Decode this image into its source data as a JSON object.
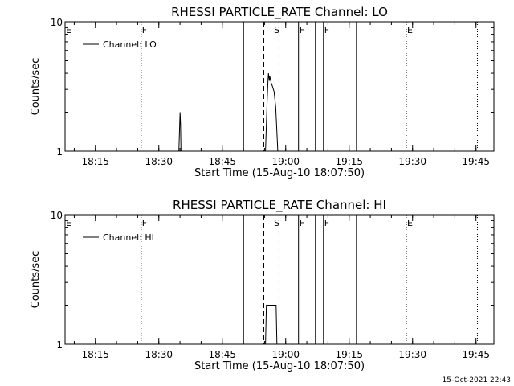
{
  "footer": {
    "timestamp": "15-Oct-2021 22:43"
  },
  "chart_data": [
    {
      "type": "line",
      "title": "RHESSI PARTICLE_RATE Channel: LO",
      "xlabel": "Start Time (15-Aug-10 18:07:50)",
      "ylabel": "Counts/sec",
      "x_unit": "minutes after 18:07:50",
      "xlim": [
        0,
        101.4
      ],
      "ylim": [
        1,
        10
      ],
      "y_scale": "log",
      "y_ticks": [
        1,
        10
      ],
      "x_ticks": [
        {
          "t": 7.17,
          "label": "18:15"
        },
        {
          "t": 22.17,
          "label": "18:30"
        },
        {
          "t": 37.17,
          "label": "18:45"
        },
        {
          "t": 52.17,
          "label": "19:00"
        },
        {
          "t": 67.17,
          "label": "19:15"
        },
        {
          "t": 82.17,
          "label": "19:30"
        },
        {
          "t": 97.17,
          "label": "19:45"
        }
      ],
      "legend": {
        "entries": [
          "Channel: LO"
        ],
        "position": "top-left"
      },
      "grid": false,
      "events": [
        {
          "t": 0.0,
          "label": "E",
          "style": "dotted"
        },
        {
          "t": 18.0,
          "label": "F",
          "style": "dotted"
        },
        {
          "t": 42.2,
          "label": "",
          "style": "solid"
        },
        {
          "t": 47.0,
          "label": "",
          "style": "dashed"
        },
        {
          "t": 49.2,
          "label": "S",
          "style": "none"
        },
        {
          "t": 50.6,
          "label": "",
          "style": "dashed"
        },
        {
          "t": 55.2,
          "label": "F",
          "style": "solid"
        },
        {
          "t": 59.2,
          "label": "",
          "style": "solid"
        },
        {
          "t": 61.1,
          "label": "F",
          "style": "solid"
        },
        {
          "t": 68.9,
          "label": "",
          "style": "solid"
        },
        {
          "t": 80.7,
          "label": "E",
          "style": "dotted"
        },
        {
          "t": 97.5,
          "label": "",
          "style": "dotted"
        }
      ],
      "series": [
        {
          "name": "Channel: LO",
          "segments": [
            {
              "x": [
                26.9,
                27.1,
                27.2,
                27.3,
                27.4
              ],
              "y": [
                1.0,
                1.6,
                2.0,
                1.6,
                1.0
              ]
            },
            {
              "x": [
                47.4,
                47.8,
                48.0,
                48.1,
                48.3,
                48.4,
                48.7,
                49.0,
                49.4,
                49.8,
                50.3
              ],
              "y": [
                1.0,
                2.5,
                3.6,
                4.0,
                3.5,
                3.8,
                3.4,
                3.2,
                2.9,
                2.2,
                1.0
              ]
            }
          ]
        }
      ]
    },
    {
      "type": "line",
      "title": "RHESSI PARTICLE_RATE Channel: HI",
      "xlabel": "Start Time (15-Aug-10 18:07:50)",
      "ylabel": "Counts/sec",
      "x_unit": "minutes after 18:07:50",
      "xlim": [
        0,
        101.4
      ],
      "ylim": [
        1,
        10
      ],
      "y_scale": "log",
      "y_ticks": [
        1,
        10
      ],
      "x_ticks": [
        {
          "t": 7.17,
          "label": "18:15"
        },
        {
          "t": 22.17,
          "label": "18:30"
        },
        {
          "t": 37.17,
          "label": "18:45"
        },
        {
          "t": 52.17,
          "label": "19:00"
        },
        {
          "t": 67.17,
          "label": "19:15"
        },
        {
          "t": 82.17,
          "label": "19:30"
        },
        {
          "t": 97.17,
          "label": "19:45"
        }
      ],
      "legend": {
        "entries": [
          "Channel: HI"
        ],
        "position": "top-left"
      },
      "grid": false,
      "events": [
        {
          "t": 0.0,
          "label": "E",
          "style": "dotted"
        },
        {
          "t": 18.0,
          "label": "F",
          "style": "dotted"
        },
        {
          "t": 42.2,
          "label": "",
          "style": "solid"
        },
        {
          "t": 47.0,
          "label": "",
          "style": "dashed"
        },
        {
          "t": 49.2,
          "label": "S",
          "style": "none"
        },
        {
          "t": 50.6,
          "label": "",
          "style": "dashed"
        },
        {
          "t": 55.2,
          "label": "F",
          "style": "solid"
        },
        {
          "t": 59.2,
          "label": "",
          "style": "solid"
        },
        {
          "t": 61.1,
          "label": "F",
          "style": "solid"
        },
        {
          "t": 68.9,
          "label": "",
          "style": "solid"
        },
        {
          "t": 80.7,
          "label": "E",
          "style": "dotted"
        },
        {
          "t": 97.5,
          "label": "",
          "style": "dotted"
        }
      ],
      "series": [
        {
          "name": "Channel: HI",
          "segments": [
            {
              "x": [
                47.4,
                47.6,
                49.9,
                50.1
              ],
              "y": [
                1.0,
                2.0,
                2.0,
                1.0
              ]
            }
          ]
        }
      ]
    }
  ]
}
